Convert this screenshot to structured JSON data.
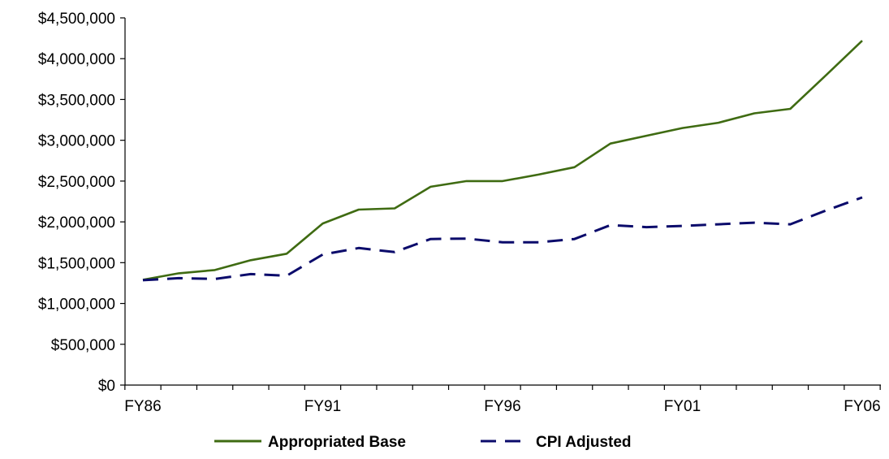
{
  "chart_data": {
    "type": "line",
    "title": "",
    "xlabel": "",
    "ylabel": "",
    "x": [
      "FY86",
      "FY87",
      "FY88",
      "FY89",
      "FY90",
      "FY91",
      "FY92",
      "FY93",
      "FY94",
      "FY95",
      "FY96",
      "FY97",
      "FY98",
      "FY99",
      "FY00",
      "FY01",
      "FY02",
      "FY03",
      "FY04",
      "FY05",
      "FY06"
    ],
    "x_tick_labels": [
      "FY86",
      "FY91",
      "FY96",
      "FY01",
      "FY06"
    ],
    "y_tick_labels": [
      "$0",
      "$500,000",
      "$1,000,000",
      "$1,500,000",
      "$2,000,000",
      "$2,500,000",
      "$3,000,000",
      "$3,500,000",
      "$4,000,000",
      "$4,500,000"
    ],
    "ylim": [
      0,
      4500000
    ],
    "grid": false,
    "legend_position": "bottom",
    "series": [
      {
        "name": "Appropriated Base",
        "color": "#3f6b12",
        "style": "solid",
        "values": [
          1290000,
          1370000,
          1410000,
          1530000,
          1610000,
          1980000,
          2150000,
          2165000,
          2430000,
          2500000,
          2500000,
          2580000,
          2670000,
          2960000,
          3055000,
          3150000,
          3215000,
          3330000,
          3385000,
          3800000,
          4220000
        ]
      },
      {
        "name": "CPI Adjusted",
        "color": "#0b0b6b",
        "style": "dashed",
        "values": [
          1285000,
          1310000,
          1300000,
          1360000,
          1340000,
          1600000,
          1680000,
          1630000,
          1790000,
          1795000,
          1750000,
          1750000,
          1790000,
          1960000,
          1935000,
          1950000,
          1970000,
          1990000,
          1970000,
          2140000,
          2300000
        ]
      }
    ]
  }
}
